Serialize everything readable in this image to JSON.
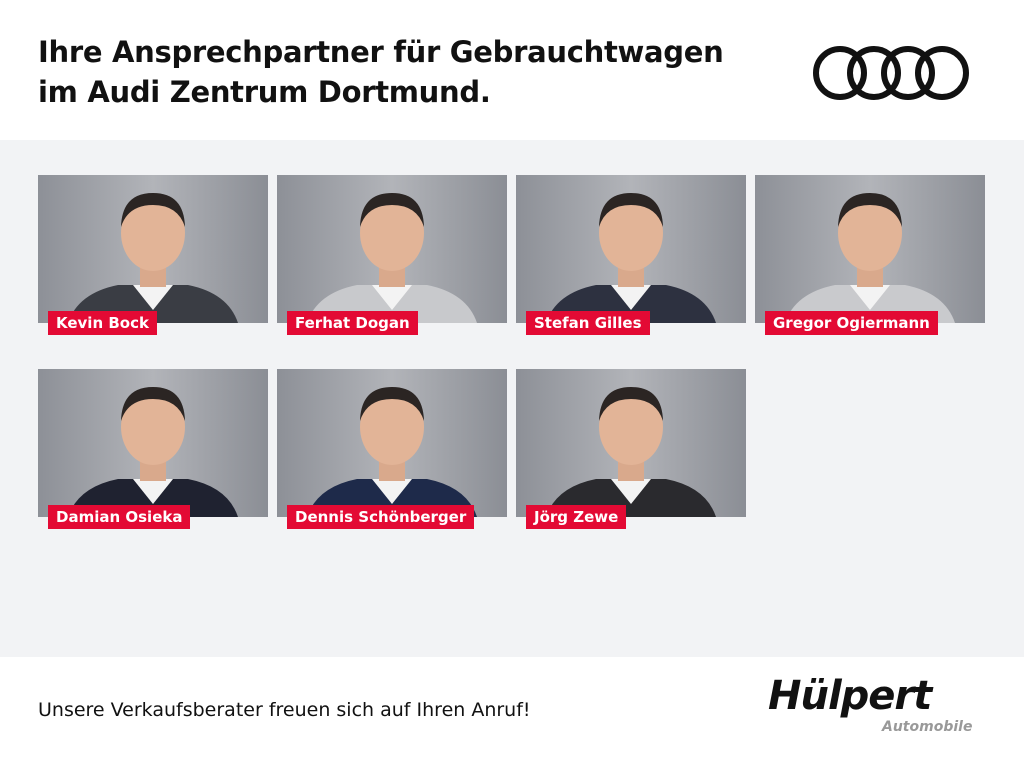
{
  "header": {
    "title_line1": "Ihre Ansprechpartner für Gebrauchtwagen",
    "title_line2": "im Audi Zentrum Dortmund.",
    "brand_logo": "audi-rings-logo"
  },
  "team": [
    {
      "name": "Kevin Bock",
      "suit": "#3a3d44"
    },
    {
      "name": "Ferhat Dogan",
      "suit": "#c8c9cc"
    },
    {
      "name": "Stefan Gilles",
      "suit": "#2d3140"
    },
    {
      "name": "Gregor Ogiermann",
      "suit": "#c9cacd"
    },
    {
      "name": "Damian Osieka",
      "suit": "#1f2230"
    },
    {
      "name": "Dennis Schönberger",
      "suit": "#1e2a4a"
    },
    {
      "name": "Jörg Zewe",
      "suit": "#2a2a2e"
    }
  ],
  "footer": {
    "slogan": "Unsere Verkaufsberater freuen sich auf Ihren Anruf!",
    "logo_main": "Hülpert",
    "logo_sub": "Automobile"
  },
  "colors": {
    "accent": "#e30a34",
    "background": "#f2f3f5"
  }
}
